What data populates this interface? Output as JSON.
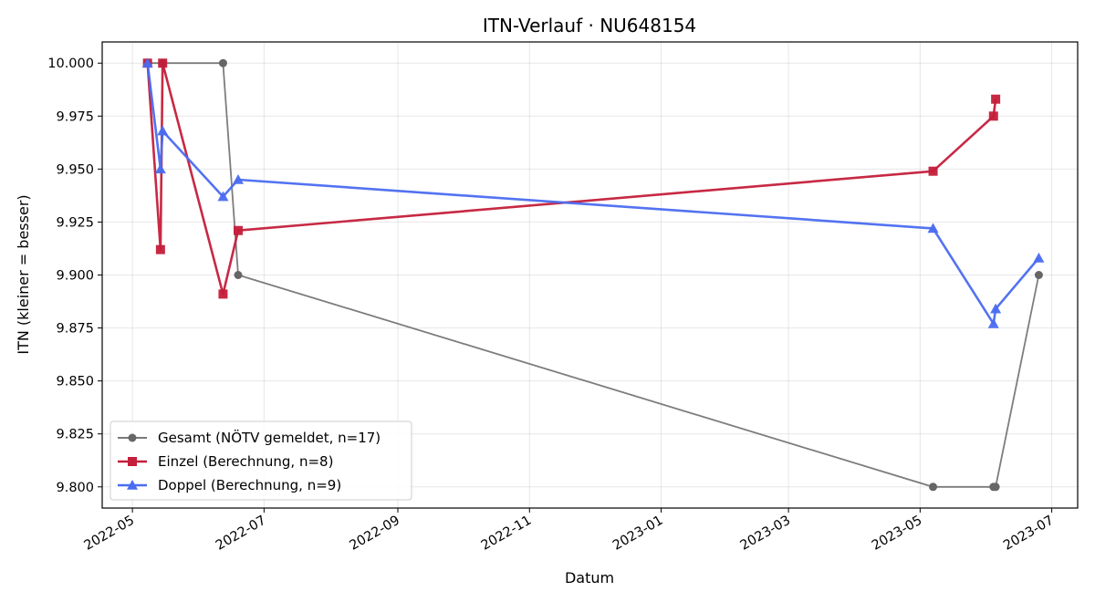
{
  "chart_data": {
    "type": "line",
    "title": "ITN-Verlauf · NU648154",
    "xlabel": "Datum",
    "ylabel": "ITN  (kleiner = besser)",
    "x_ticks": [
      "2022-05",
      "2022-07",
      "2022-09",
      "2022-11",
      "2023-01",
      "2023-03",
      "2023-05",
      "2023-07"
    ],
    "y_ticks": [
      "9.800",
      "9.825",
      "9.850",
      "9.875",
      "9.900",
      "9.925",
      "9.950",
      "9.975",
      "10.000"
    ],
    "xlim": [
      "2022-04-17",
      "2023-07-13"
    ],
    "ylim": [
      9.79,
      10.01
    ],
    "grid": true,
    "legend_position": "lower-left",
    "series": [
      {
        "name": "Gesamt (NÖTV gemeldet, n=17)",
        "color": "#666666",
        "marker": "circle",
        "points": [
          [
            "2022-05-08",
            10.0
          ],
          [
            "2022-05-15",
            10.0
          ],
          [
            "2022-06-12",
            10.0
          ],
          [
            "2022-06-19",
            9.9
          ],
          [
            "2023-05-07",
            9.8
          ],
          [
            "2023-06-04",
            9.8
          ],
          [
            "2023-06-05",
            9.8
          ],
          [
            "2023-06-25",
            9.9
          ]
        ]
      },
      {
        "name": "Einzel (Berechnung, n=8)",
        "color": "#c41e3a",
        "marker": "square",
        "points": [
          [
            "2022-05-08",
            10.0
          ],
          [
            "2022-05-14",
            9.912
          ],
          [
            "2022-05-15",
            10.0
          ],
          [
            "2022-06-12",
            9.891
          ],
          [
            "2022-06-19",
            9.921
          ],
          [
            "2023-05-07",
            9.949
          ],
          [
            "2023-06-04",
            9.975
          ],
          [
            "2023-06-05",
            9.983
          ]
        ]
      },
      {
        "name": "Doppel (Berechnung, n=9)",
        "color": "#4a6cf0",
        "marker": "triangle",
        "points": [
          [
            "2022-05-08",
            10.0
          ],
          [
            "2022-05-14",
            9.95
          ],
          [
            "2022-05-15",
            9.968
          ],
          [
            "2022-06-12",
            9.937
          ],
          [
            "2022-06-19",
            9.945
          ],
          [
            "2023-05-07",
            9.922
          ],
          [
            "2023-06-04",
            9.877
          ],
          [
            "2023-06-05",
            9.884
          ],
          [
            "2023-06-25",
            9.908
          ]
        ]
      }
    ]
  }
}
